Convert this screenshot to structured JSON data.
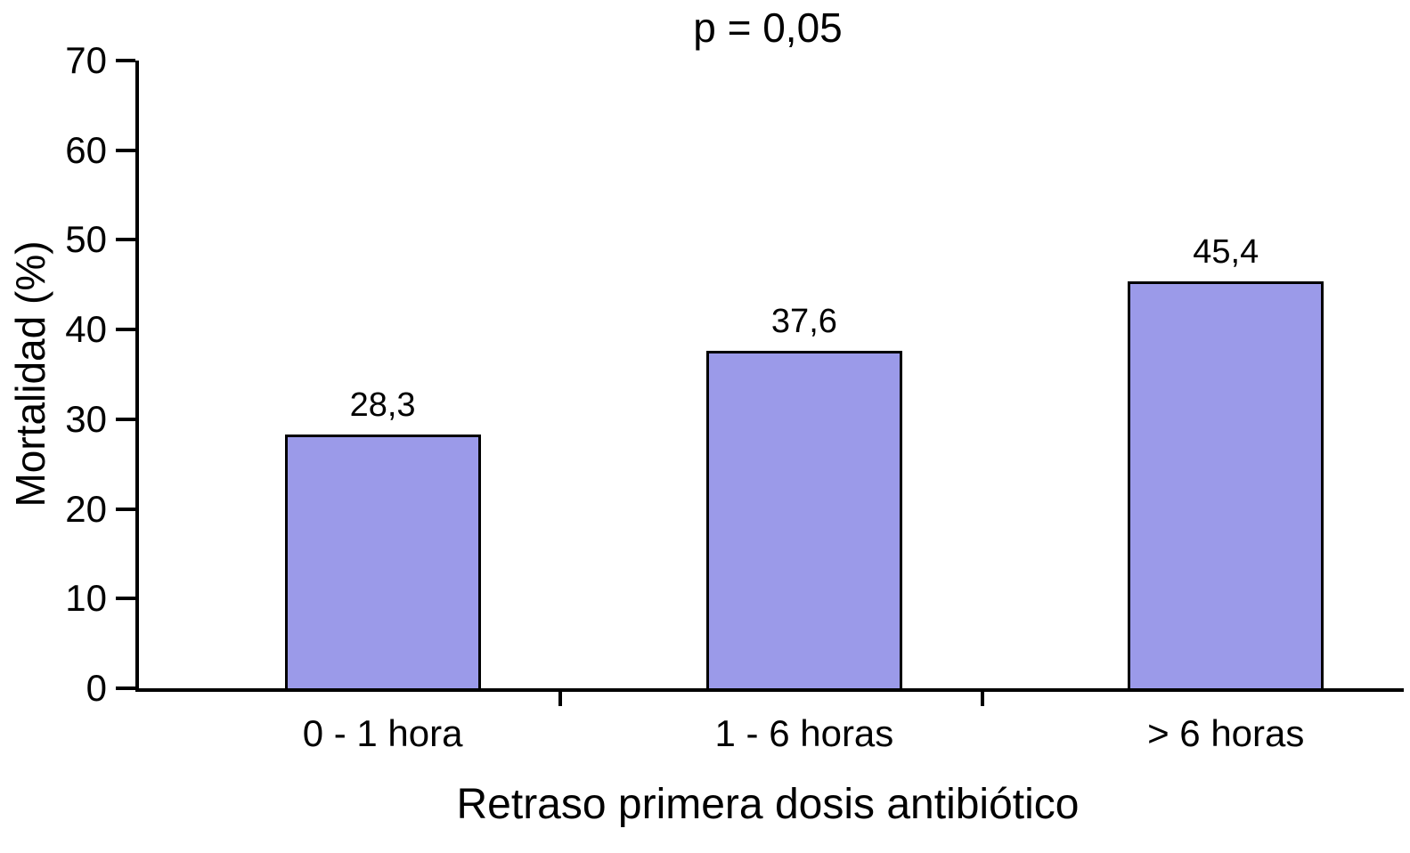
{
  "chart_data": {
    "type": "bar",
    "title": "p = 0,05",
    "categories": [
      "0 - 1 hora",
      "1 - 6 horas",
      "> 6 horas"
    ],
    "values": [
      28.3,
      37.6,
      45.4
    ],
    "value_labels": [
      "28,3",
      "37,6",
      "45,4"
    ],
    "xlabel": "Retraso primera dosis antibiótico",
    "ylabel": "Mortalidad (%)",
    "ylim": [
      0,
      70
    ],
    "yticks": [
      0,
      10,
      20,
      30,
      40,
      50,
      60,
      70
    ],
    "bar_color": "#9b9ae9",
    "bar_border_color": "#000000",
    "axis_color": "#000000",
    "background_color": "#ffffff",
    "grid": false,
    "legend": false
  }
}
